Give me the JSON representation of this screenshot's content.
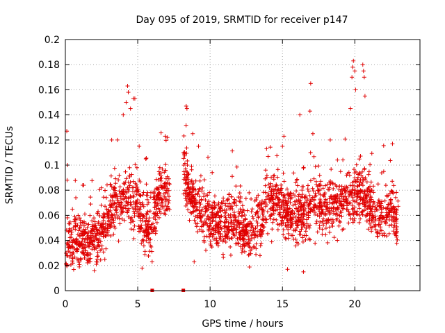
{
  "chart_data": {
    "type": "scatter",
    "title": "Day 095 of 2019, SRMTID for receiver p147",
    "xlabel": "GPS time / hours",
    "ylabel": "SRMTID / TECUs",
    "xlim": [
      0,
      24.5
    ],
    "ylim": [
      0,
      0.2
    ],
    "xticks": [
      0,
      5,
      10,
      15,
      20
    ],
    "xtick_labels": [
      "0",
      "5",
      "10",
      "15",
      "20"
    ],
    "yticks": [
      0,
      0.02,
      0.04,
      0.06,
      0.08,
      0.1,
      0.12,
      0.14,
      0.16,
      0.18,
      0.2
    ],
    "ytick_labels": [
      "0",
      "0.02",
      "0.04",
      "0.06",
      "0.08",
      "0.1",
      "0.12",
      "0.14",
      "0.16",
      "0.18",
      "0.2"
    ],
    "grid": true,
    "marker_color": "#e00000",
    "series": [
      {
        "name": "SRMTID",
        "segments": [
          {
            "t": [
              0.0,
              6.0
            ],
            "base": [
              [
                0.0,
                0.035
              ],
              [
                0.5,
                0.038
              ],
              [
                1.0,
                0.04
              ],
              [
                1.5,
                0.042
              ],
              [
                2.0,
                0.04
              ],
              [
                2.5,
                0.045
              ],
              [
                3.0,
                0.06
              ],
              [
                3.5,
                0.07
              ],
              [
                4.0,
                0.075
              ],
              [
                4.5,
                0.072
              ],
              [
                5.0,
                0.065
              ],
              [
                5.5,
                0.05
              ],
              [
                6.0,
                0.05
              ]
            ],
            "spread": 0.022
          },
          {
            "t": [
              6.05,
              7.2
            ],
            "base": [
              [
                6.05,
                0.06
              ],
              [
                6.5,
                0.075
              ],
              [
                7.0,
                0.08
              ],
              [
                7.2,
                0.075
              ]
            ],
            "spread": 0.022
          },
          {
            "t": [
              8.15,
              23.0
            ],
            "base": [
              [
                8.15,
                0.1
              ],
              [
                8.5,
                0.08
              ],
              [
                9.0,
                0.07
              ],
              [
                10.0,
                0.055
              ],
              [
                11.0,
                0.055
              ],
              [
                12.0,
                0.055
              ],
              [
                12.5,
                0.045
              ],
              [
                13.0,
                0.045
              ],
              [
                13.5,
                0.06
              ],
              [
                14.0,
                0.07
              ],
              [
                14.5,
                0.075
              ],
              [
                15.0,
                0.065
              ],
              [
                15.5,
                0.06
              ],
              [
                16.0,
                0.06
              ],
              [
                16.5,
                0.06
              ],
              [
                17.0,
                0.07
              ],
              [
                17.5,
                0.07
              ],
              [
                18.0,
                0.065
              ],
              [
                18.5,
                0.065
              ],
              [
                19.0,
                0.07
              ],
              [
                19.5,
                0.075
              ],
              [
                20.0,
                0.075
              ],
              [
                20.5,
                0.075
              ],
              [
                21.0,
                0.07
              ],
              [
                21.5,
                0.06
              ],
              [
                22.0,
                0.06
              ],
              [
                22.5,
                0.065
              ],
              [
                23.0,
                0.05
              ]
            ],
            "spread": 0.022
          }
        ],
        "spikes": [
          {
            "x": 0.1,
            "y": 0.127
          },
          {
            "x": 0.15,
            "y": 0.1
          },
          {
            "x": 0.12,
            "y": 0.088
          },
          {
            "x": 3.2,
            "y": 0.12
          },
          {
            "x": 3.6,
            "y": 0.12
          },
          {
            "x": 4.0,
            "y": 0.14
          },
          {
            "x": 4.2,
            "y": 0.15
          },
          {
            "x": 4.3,
            "y": 0.163
          },
          {
            "x": 4.35,
            "y": 0.158
          },
          {
            "x": 4.5,
            "y": 0.145
          },
          {
            "x": 4.7,
            "y": 0.153
          },
          {
            "x": 4.8,
            "y": 0.153
          },
          {
            "x": 5.1,
            "y": 0.115
          },
          {
            "x": 6.9,
            "y": 0.123
          },
          {
            "x": 7.05,
            "y": 0.122
          },
          {
            "x": 8.35,
            "y": 0.147
          },
          {
            "x": 8.4,
            "y": 0.145
          },
          {
            "x": 8.8,
            "y": 0.125
          },
          {
            "x": 9.2,
            "y": 0.115
          },
          {
            "x": 13.9,
            "y": 0.113
          },
          {
            "x": 15.0,
            "y": 0.115
          },
          {
            "x": 15.1,
            "y": 0.123
          },
          {
            "x": 16.2,
            "y": 0.14
          },
          {
            "x": 16.9,
            "y": 0.143
          },
          {
            "x": 16.95,
            "y": 0.165
          },
          {
            "x": 17.1,
            "y": 0.125
          },
          {
            "x": 18.3,
            "y": 0.12
          },
          {
            "x": 19.7,
            "y": 0.145
          },
          {
            "x": 19.8,
            "y": 0.17
          },
          {
            "x": 19.85,
            "y": 0.178
          },
          {
            "x": 19.9,
            "y": 0.183
          },
          {
            "x": 20.0,
            "y": 0.175
          },
          {
            "x": 20.05,
            "y": 0.16
          },
          {
            "x": 20.55,
            "y": 0.18
          },
          {
            "x": 20.6,
            "y": 0.175
          },
          {
            "x": 20.65,
            "y": 0.17
          },
          {
            "x": 20.7,
            "y": 0.155
          },
          {
            "x": 22.6,
            "y": 0.117
          },
          {
            "x": 5.3,
            "y": 0.018
          },
          {
            "x": 10.9,
            "y": 0.029
          },
          {
            "x": 15.35,
            "y": 0.017
          },
          {
            "x": 16.45,
            "y": 0.015
          },
          {
            "x": 8.9,
            "y": 0.023
          },
          {
            "x": 2.0,
            "y": 0.016
          }
        ],
        "zero_markers": [
          6.0,
          8.15
        ]
      }
    ]
  }
}
